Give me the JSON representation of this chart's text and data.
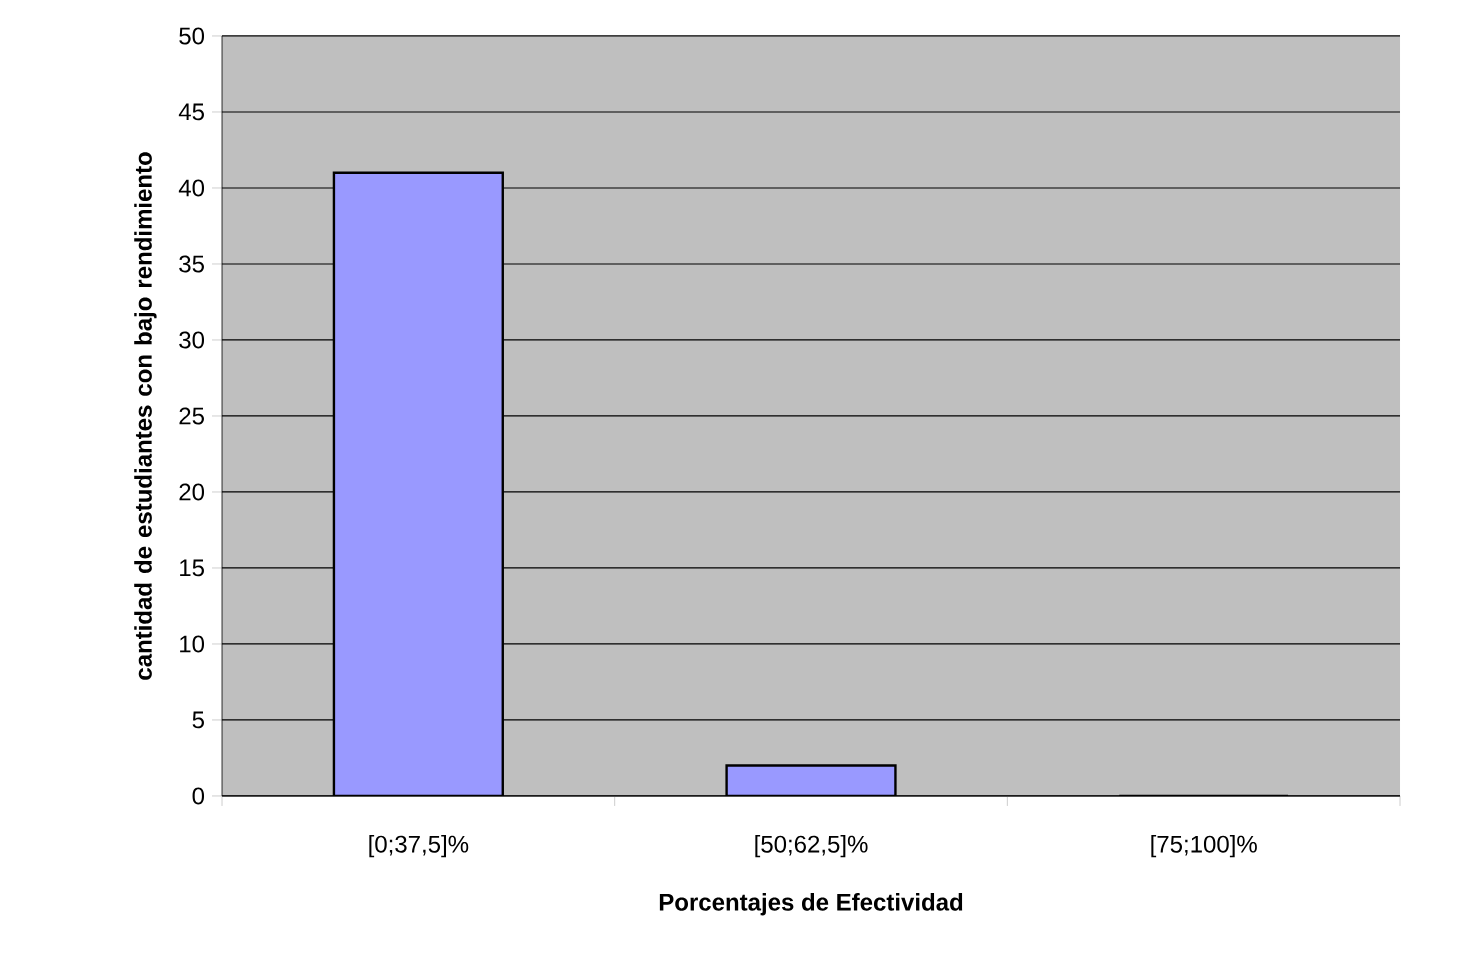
{
  "chart_data": {
    "type": "bar",
    "xlabel": "Porcentajes de Efectividad",
    "ylabel": "cantidad de estudiantes con bajo rendimiento",
    "categories": [
      "[0;37,5]%",
      "[50;62,5]%",
      "[75;100]%"
    ],
    "values": [
      41,
      2,
      0
    ],
    "color": "#9999ff",
    "ylim": [
      0,
      50
    ],
    "yticks": [
      0,
      5,
      10,
      15,
      20,
      25,
      30,
      35,
      40,
      45,
      50
    ],
    "grid": "y"
  }
}
